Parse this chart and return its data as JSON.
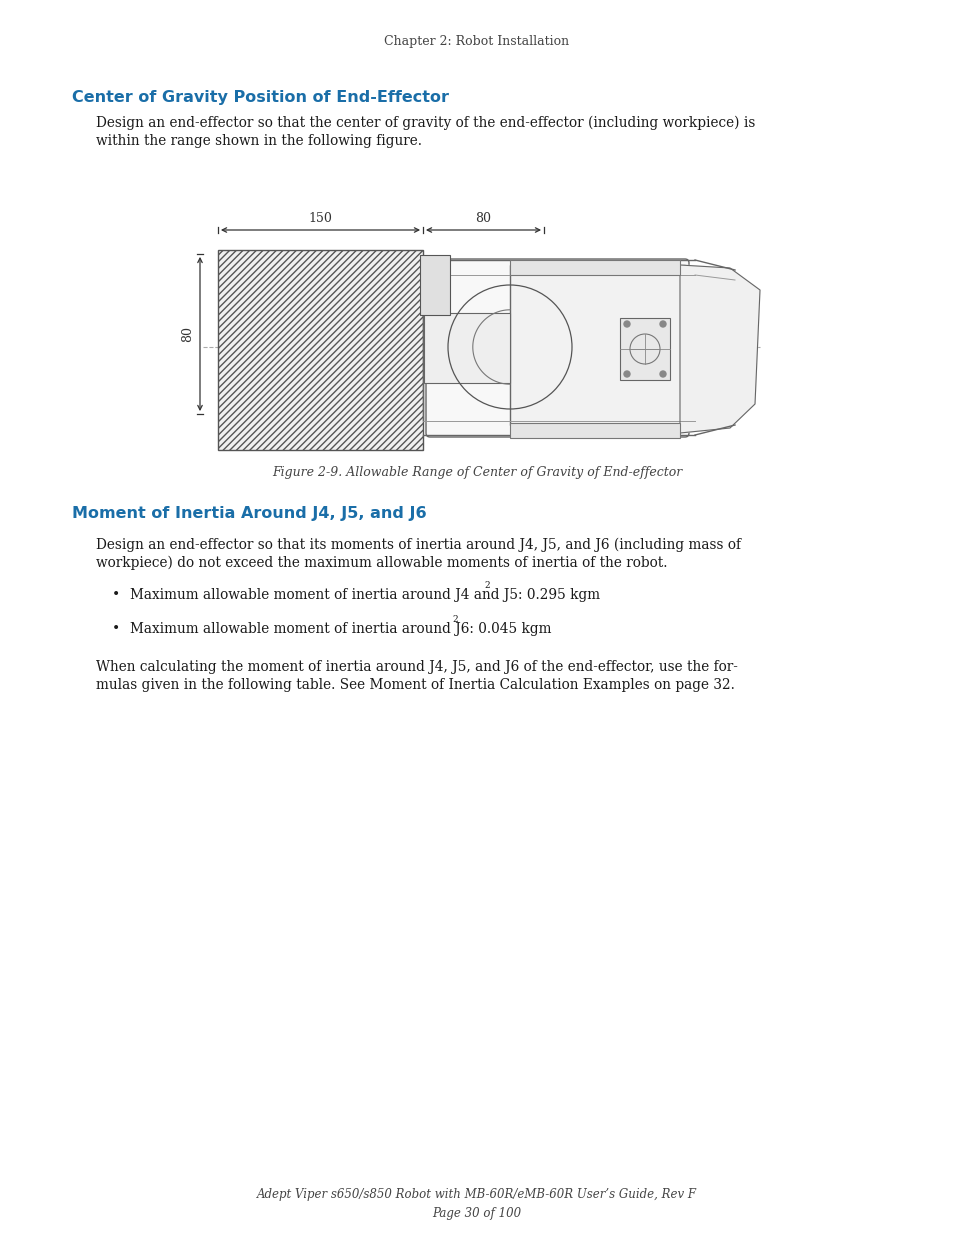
{
  "page_header": "Chapter 2: Robot Installation",
  "section1_title": "Center of Gravity Position of End-Effector",
  "section1_body_line1": "Design an end-effector so that the center of gravity of the end-effector (including workpiece) is",
  "section1_body_line2": "within the range shown in the following figure.",
  "figure_caption": "Figure 2-9. Allowable Range of Center of Gravity of End-effector",
  "section2_title": "Moment of Inertia Around J4, J5, and J6",
  "section2_body_line1": "Design an end-effector so that its moments of inertia around J4, J5, and J6 (including mass of",
  "section2_body_line2": "workpiece) do not exceed the maximum allowable moments of inertia of the robot.",
  "bullet1_text": "Maximum allowable moment of inertia around J4 and J5: 0.295 kgm",
  "bullet1_super": "2",
  "bullet2_text": "Maximum allowable moment of inertia around J6: 0.045 kgm",
  "bullet2_super": "2",
  "closing_line1": "When calculating the moment of inertia around J4, J5, and J6 of the end-effector, use the for-",
  "closing_line2": "mulas given in the following table. See Moment of Inertia Calculation Examples on page 32.",
  "footer_line1": "Adept Viper s650/s850 Robot with MB-60R/eMB-60R User’s Guide, Rev F",
  "footer_line2": "Page 30 of 100",
  "heading_color": "#1a6ea8",
  "text_color": "#1a1a1a",
  "header_color": "#444444",
  "bg_color": "#ffffff",
  "dim_150": "150",
  "dim_80_top": "80",
  "dim_80_left": "80",
  "line_color": "#888888",
  "draw_color": "#333333"
}
